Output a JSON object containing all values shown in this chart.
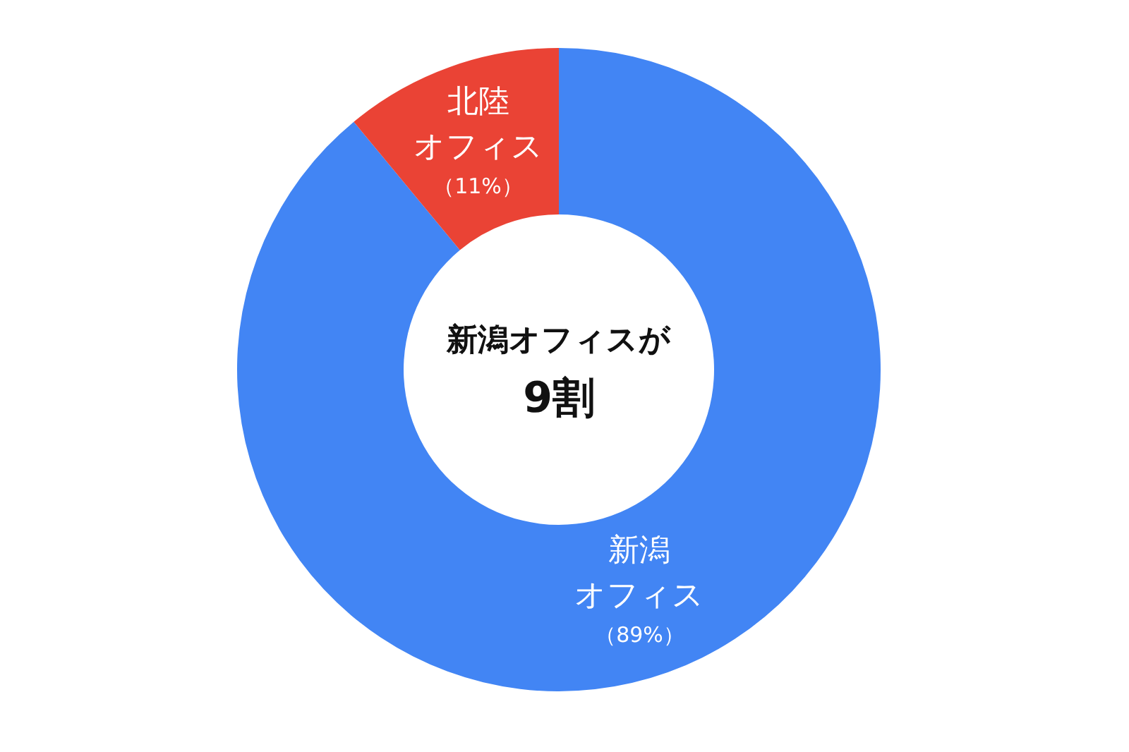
{
  "chart_data": {
    "type": "donut",
    "categories": [
      "新潟オフィス",
      "北陸オフィス"
    ],
    "values": [
      89,
      11
    ],
    "colors": [
      "#4285f4",
      "#ea4335"
    ],
    "value_labels": [
      "（89%）",
      "（11%）"
    ],
    "annotations": [
      "新潟オフィスが\n9割"
    ]
  }
}
